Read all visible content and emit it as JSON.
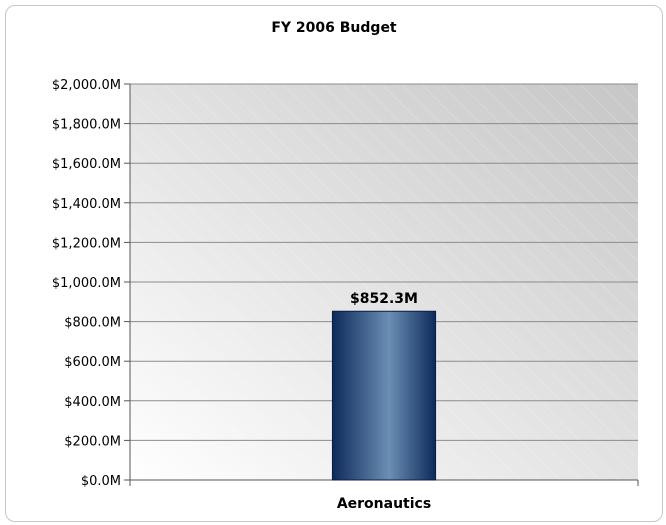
{
  "chart_data": {
    "type": "bar",
    "title": "FY 2006 Budget",
    "categories": [
      "Aeronautics"
    ],
    "values": [
      852.3
    ],
    "data_labels": [
      "$852.3M"
    ],
    "ylim": [
      0,
      2000
    ],
    "yticks": [
      0,
      200,
      400,
      600,
      800,
      1000,
      1200,
      1400,
      1600,
      1800,
      2000
    ],
    "ytick_labels": [
      "$0.0M",
      "$200.0M",
      "$400.0M",
      "$600.0M",
      "$800.0M",
      "$1,000.0M",
      "$1,200.0M",
      "$1,400.0M",
      "$1,600.0M",
      "$1,800.0M",
      "$2,000.0M"
    ],
    "xlabel": "",
    "ylabel": "",
    "grid": true,
    "legend": "none",
    "colors": {
      "bar_dark": "#0e2a5c",
      "bar_light": "#6b8fb3",
      "plot_bg": "#d4d4d4",
      "gridline": "#8c8c8c"
    }
  }
}
